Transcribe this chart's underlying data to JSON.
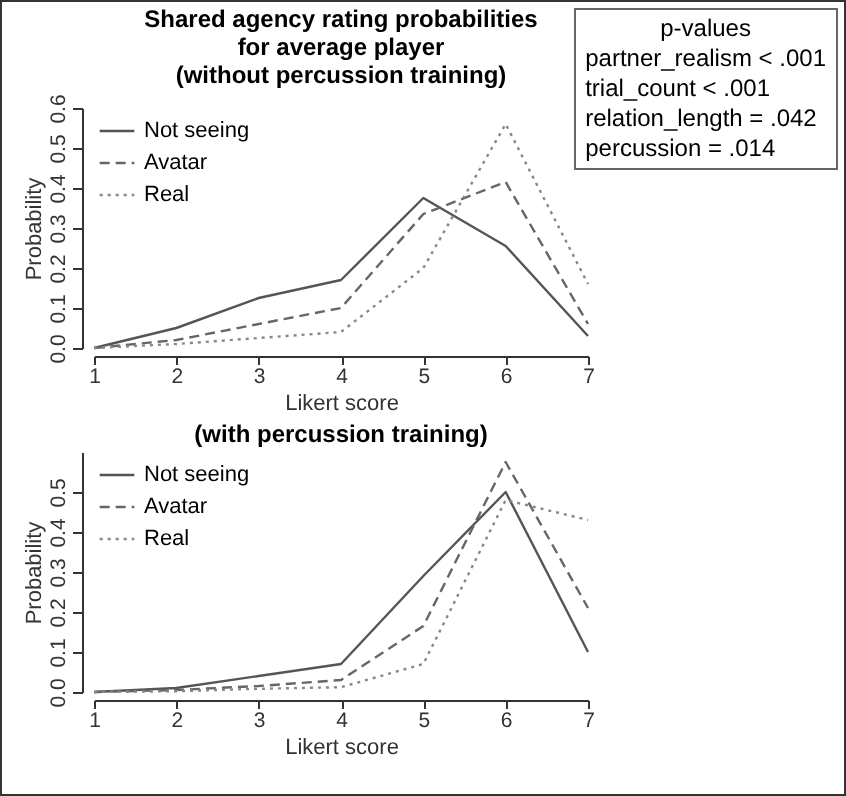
{
  "chart_data": [
    {
      "type": "line",
      "title": "Shared agency rating probabilities\nfor average player\n(without percussion training)",
      "xlabel": "Likert score",
      "ylabel": "Probability",
      "x": [
        1,
        2,
        3,
        4,
        5,
        6,
        7
      ],
      "xlim": [
        1,
        7
      ],
      "xticks": [
        1,
        2,
        3,
        4,
        5,
        6,
        7
      ],
      "ylim": [
        0,
        0.6
      ],
      "yticks": [
        {
          "value": 0,
          "label": "0.0"
        },
        {
          "value": 0.1,
          "label": "0.1"
        },
        {
          "value": 0.2,
          "label": "0.2"
        },
        {
          "value": 0.3,
          "label": "0.3"
        },
        {
          "value": 0.4,
          "label": "0.4"
        },
        {
          "value": 0.5,
          "label": "0.5"
        },
        {
          "value": 0.6,
          "label": "0.6"
        }
      ],
      "legend": "top left",
      "grid": false,
      "marker": "none",
      "annotations": [
        "p-values",
        "partner_realism < .001",
        "trial_count < .001",
        "relation_length = .042",
        "percussion = .014"
      ],
      "series": [
        {
          "name": "Not seeing",
          "color": "#555555",
          "line_style": "solid",
          "values": [
            0,
            0.05,
            0.125,
            0.17,
            0.375,
            0.255,
            0.03
          ]
        },
        {
          "name": "Avatar",
          "color": "#666666",
          "line_style": "dashed",
          "values": [
            0,
            0.02,
            0.06,
            0.1,
            0.335,
            0.415,
            0.06
          ]
        },
        {
          "name": "Real",
          "color": "#888888",
          "line_style": "dotted",
          "values": [
            0,
            0.01,
            0.025,
            0.04,
            0.2,
            0.56,
            0.16
          ]
        }
      ]
    },
    {
      "type": "line",
      "title": "(with percussion training)",
      "xlabel": "Likert score",
      "ylabel": "Probability",
      "x": [
        1,
        2,
        3,
        4,
        5,
        6,
        7
      ],
      "xlim": [
        1,
        7
      ],
      "xticks": [
        1,
        2,
        3,
        4,
        5,
        6,
        7
      ],
      "ylim": [
        0,
        0.6
      ],
      "yticks": [
        {
          "value": 0,
          "label": "0.0"
        },
        {
          "value": 0.1,
          "label": "0.1"
        },
        {
          "value": 0.2,
          "label": "0.2"
        },
        {
          "value": 0.3,
          "label": "0.3"
        },
        {
          "value": 0.4,
          "label": "0.4"
        },
        {
          "value": 0.5,
          "label": "0.5"
        }
      ],
      "legend": "top left",
      "grid": false,
      "marker": "none",
      "series": [
        {
          "name": "Not seeing",
          "color": "#555555",
          "line_style": "solid",
          "values": [
            0,
            0.01,
            0.04,
            0.07,
            0.29,
            0.5,
            0.1
          ]
        },
        {
          "name": "Avatar",
          "color": "#666666",
          "line_style": "dashed",
          "values": [
            0,
            0.005,
            0.015,
            0.03,
            0.165,
            0.575,
            0.21
          ]
        },
        {
          "name": "Real",
          "color": "#888888",
          "line_style": "dotted",
          "values": [
            0,
            0.002,
            0.008,
            0.012,
            0.07,
            0.48,
            0.43
          ]
        }
      ]
    }
  ]
}
